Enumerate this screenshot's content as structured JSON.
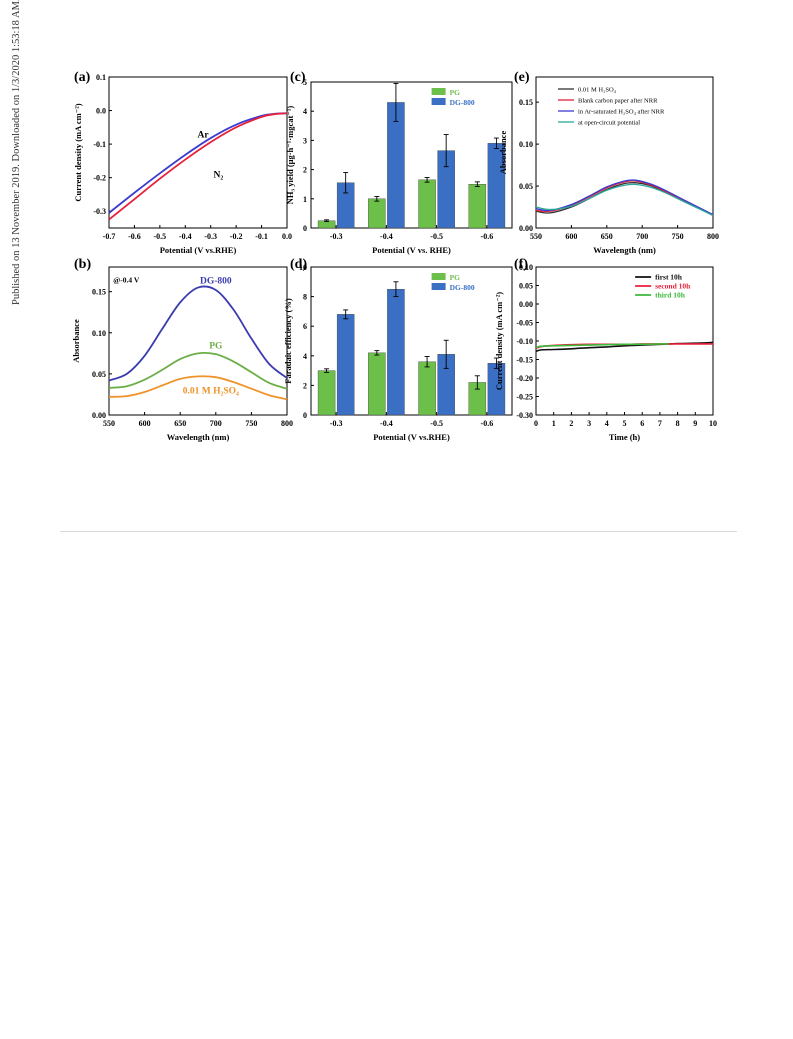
{
  "sidebar_text": "Published on 13 November 2019. Downloaded on 1/3/2020 1:53:18 AM.",
  "chart_data": [
    {
      "id": "a",
      "panel_label": "(a)",
      "type": "line",
      "xlabel": "Potential (V vs.RHE)",
      "ylabel": "Current density (mA cm⁻²)",
      "xlim": [
        -0.7,
        0.0
      ],
      "ylim": [
        -0.35,
        0.1
      ],
      "xticks": [
        -0.7,
        -0.6,
        -0.5,
        -0.4,
        -0.3,
        -0.2,
        -0.1,
        0.0
      ],
      "xtick_labels": [
        "-0.7",
        "-0.6",
        "-0.5",
        "-0.4",
        "-0.3",
        "-0.2",
        "-0.1",
        "0.0"
      ],
      "yticks": [
        -0.3,
        -0.2,
        -0.1,
        0.0,
        0.1
      ],
      "ytick_labels": [
        "-0.3",
        "-0.2",
        "-0.1",
        "0.0",
        "0.1"
      ],
      "series": [
        {
          "name": "Ar",
          "color": "#3b3bd0",
          "x": [
            -0.7,
            -0.6,
            -0.5,
            -0.4,
            -0.3,
            -0.2,
            -0.1,
            -0.05,
            0.0
          ],
          "y": [
            -0.305,
            -0.245,
            -0.187,
            -0.132,
            -0.082,
            -0.042,
            -0.016,
            -0.01,
            -0.008
          ]
        },
        {
          "name": "N₂",
          "color": "#e8213a",
          "x": [
            -0.7,
            -0.6,
            -0.5,
            -0.4,
            -0.3,
            -0.2,
            -0.1,
            -0.05,
            0.0
          ],
          "y": [
            -0.325,
            -0.264,
            -0.203,
            -0.146,
            -0.094,
            -0.05,
            -0.019,
            -0.011,
            -0.008
          ]
        }
      ],
      "annotations": [
        {
          "text": "Ar",
          "x": -0.33,
          "y": -0.08,
          "color": "#000"
        },
        {
          "text": "N₂",
          "x": -0.27,
          "y": -0.2,
          "color": "#000"
        }
      ]
    },
    {
      "id": "b",
      "panel_label": "(b)",
      "type": "line",
      "xlabel": "Wavelength (nm)",
      "ylabel": "Absorbance",
      "xlim": [
        550,
        800
      ],
      "ylim": [
        0.0,
        0.18
      ],
      "xticks": [
        550,
        600,
        650,
        700,
        750,
        800
      ],
      "xtick_labels": [
        "550",
        "600",
        "650",
        "700",
        "750",
        "800"
      ],
      "yticks": [
        0.0,
        0.05,
        0.1,
        0.15
      ],
      "ytick_labels": [
        "0.00",
        "0.05",
        "0.10",
        "0.15"
      ],
      "series": [
        {
          "name": "DG-800",
          "color": "#3b3bb0",
          "x": [
            550,
            575,
            600,
            625,
            650,
            675,
            700,
            725,
            750,
            775,
            800
          ],
          "y": [
            0.042,
            0.05,
            0.072,
            0.105,
            0.137,
            0.155,
            0.152,
            0.128,
            0.093,
            0.062,
            0.045
          ]
        },
        {
          "name": "PG",
          "color": "#6cae46",
          "x": [
            550,
            575,
            600,
            625,
            650,
            675,
            700,
            725,
            750,
            775,
            800
          ],
          "y": [
            0.033,
            0.035,
            0.043,
            0.055,
            0.068,
            0.075,
            0.074,
            0.065,
            0.052,
            0.039,
            0.032
          ]
        },
        {
          "name": "0.01 M H₂SO₄",
          "color": "#f0922a",
          "x": [
            550,
            575,
            600,
            625,
            650,
            675,
            700,
            725,
            750,
            775,
            800
          ],
          "y": [
            0.022,
            0.023,
            0.028,
            0.036,
            0.044,
            0.047,
            0.046,
            0.04,
            0.032,
            0.024,
            0.019
          ]
        }
      ],
      "annotations": [
        {
          "text": "@-0.4 V",
          "x": 556,
          "y": 0.165,
          "color": "#000"
        },
        {
          "text": "DG-800",
          "x": 700,
          "y": 0.16,
          "color": "#3b3bb0"
        },
        {
          "text": "PG",
          "x": 700,
          "y": 0.081,
          "color": "#6cae46"
        },
        {
          "text": "0.01 M H₂SO₄",
          "x": 693,
          "y": 0.026,
          "color": "#f0922a"
        }
      ]
    },
    {
      "id": "c",
      "panel_label": "(c)",
      "type": "bar",
      "xlabel": "Potential (V vs. RHE)",
      "ylabel": "NH₃ yield (μg·h⁻¹·mgcat⁻¹)",
      "categories": [
        "-0.3",
        "-0.4",
        "-0.5",
        "-0.6"
      ],
      "ylim": [
        0,
        5
      ],
      "yticks": [
        0,
        1,
        2,
        3,
        4,
        5
      ],
      "ytick_labels": [
        "0",
        "1",
        "2",
        "3",
        "4",
        "5"
      ],
      "series": [
        {
          "name": "PG",
          "color": "#6cc04a",
          "values": [
            0.25,
            1.0,
            1.65,
            1.5
          ],
          "errors": [
            0.03,
            0.08,
            0.08,
            0.08
          ]
        },
        {
          "name": "DG-800",
          "color": "#3a6fc4",
          "values": [
            1.55,
            4.3,
            2.65,
            2.9
          ],
          "errors": [
            0.35,
            0.65,
            0.55,
            0.18
          ]
        }
      ],
      "legend": "top-right"
    },
    {
      "id": "d",
      "panel_label": "(d)",
      "type": "bar",
      "xlabel": "Potential (V vs.RHE)",
      "ylabel": "Faradaic efficiency (%)",
      "categories": [
        "-0.3",
        "-0.4",
        "-0.5",
        "-0.6"
      ],
      "ylim": [
        0,
        10
      ],
      "yticks": [
        0,
        2,
        4,
        6,
        8,
        10
      ],
      "ytick_labels": [
        "0",
        "2",
        "4",
        "6",
        "8",
        "10"
      ],
      "series": [
        {
          "name": "PG",
          "color": "#6cc04a",
          "values": [
            3.0,
            4.2,
            3.6,
            2.2
          ],
          "errors": [
            0.12,
            0.15,
            0.35,
            0.45
          ]
        },
        {
          "name": "DG-800",
          "color": "#3a6fc4",
          "values": [
            6.8,
            8.5,
            4.1,
            3.5
          ],
          "errors": [
            0.3,
            0.5,
            0.95,
            0.35
          ]
        }
      ],
      "legend": "top-right"
    },
    {
      "id": "e",
      "panel_label": "(e)",
      "type": "line",
      "xlabel": "Wavelength (nm)",
      "ylabel": "Absorbance",
      "xlim": [
        550,
        800
      ],
      "ylim": [
        0.0,
        0.18
      ],
      "xticks": [
        550,
        600,
        650,
        700,
        750,
        800
      ],
      "xtick_labels": [
        "550",
        "600",
        "650",
        "700",
        "750",
        "800"
      ],
      "yticks": [
        0.0,
        0.05,
        0.1,
        0.15
      ],
      "ytick_labels": [
        "0.00",
        "0.05",
        "0.10",
        "0.15"
      ],
      "series": [
        {
          "name": "0.01 M H₂SO₄",
          "color": "#333333",
          "x": [
            550,
            570,
            600,
            625,
            650,
            675,
            690,
            710,
            730,
            760,
            800
          ],
          "y": [
            0.02,
            0.018,
            0.025,
            0.035,
            0.046,
            0.053,
            0.054,
            0.051,
            0.044,
            0.032,
            0.015
          ]
        },
        {
          "name": "Blank carbon paper after NRR",
          "color": "#e8213a",
          "x": [
            550,
            570,
            600,
            625,
            650,
            675,
            690,
            710,
            730,
            760,
            800
          ],
          "y": [
            0.021,
            0.02,
            0.027,
            0.037,
            0.048,
            0.055,
            0.056,
            0.052,
            0.045,
            0.032,
            0.015
          ]
        },
        {
          "name": "in Ar-saturated H₂SO₄ after NRR",
          "color": "#3b3bd0",
          "x": [
            550,
            570,
            600,
            625,
            650,
            675,
            690,
            710,
            730,
            760,
            800
          ],
          "y": [
            0.023,
            0.021,
            0.028,
            0.038,
            0.049,
            0.056,
            0.057,
            0.053,
            0.046,
            0.033,
            0.016
          ]
        },
        {
          "name": "at open-circuit potential",
          "color": "#2aa89a",
          "x": [
            550,
            570,
            600,
            625,
            650,
            675,
            690,
            710,
            730,
            760,
            800
          ],
          "y": [
            0.025,
            0.022,
            0.026,
            0.035,
            0.045,
            0.051,
            0.052,
            0.049,
            0.043,
            0.031,
            0.015
          ]
        }
      ],
      "legend": "top"
    },
    {
      "id": "f",
      "panel_label": "(f)",
      "type": "line",
      "xlabel": "Time (h)",
      "ylabel": "Current density (mA cm⁻²)",
      "xlim": [
        0,
        10
      ],
      "ylim": [
        -0.3,
        0.1
      ],
      "xticks": [
        0,
        1,
        2,
        3,
        4,
        5,
        6,
        7,
        8,
        9,
        10
      ],
      "xtick_labels": [
        "0",
        "1",
        "2",
        "3",
        "4",
        "5",
        "6",
        "7",
        "8",
        "9",
        "10"
      ],
      "yticks": [
        -0.3,
        -0.25,
        -0.2,
        -0.15,
        -0.1,
        -0.05,
        0.0,
        0.05,
        0.1
      ],
      "ytick_labels": [
        "-0.30",
        "-0.25",
        "-0.20",
        "-0.15",
        "-0.10",
        "-0.05",
        "0.00",
        "0.05",
        "0.10"
      ],
      "series": [
        {
          "name": "first  10h",
          "color": "#111111",
          "x": [
            0,
            0.3,
            1,
            2,
            3,
            4,
            5,
            6,
            7,
            8,
            9,
            10
          ],
          "y": [
            -0.128,
            -0.124,
            -0.123,
            -0.121,
            -0.118,
            -0.116,
            -0.113,
            -0.111,
            -0.109,
            -0.107,
            -0.106,
            -0.104
          ]
        },
        {
          "name": "second  10h",
          "color": "#e8213a",
          "x": [
            0,
            0.3,
            1,
            2,
            3,
            4,
            5,
            6,
            7,
            8,
            9,
            10
          ],
          "y": [
            -0.12,
            -0.115,
            -0.112,
            -0.11,
            -0.109,
            -0.109,
            -0.109,
            -0.108,
            -0.108,
            -0.108,
            -0.108,
            -0.108
          ]
        },
        {
          "name": "third  10h",
          "color": "#3cb83c",
          "x": [
            0,
            0.3,
            1,
            2,
            3,
            4,
            5,
            6,
            7,
            7.5
          ],
          "y": [
            -0.118,
            -0.114,
            -0.113,
            -0.112,
            -0.111,
            -0.11,
            -0.109,
            -0.109,
            -0.108,
            -0.108
          ]
        }
      ],
      "legend": "top-right"
    }
  ]
}
